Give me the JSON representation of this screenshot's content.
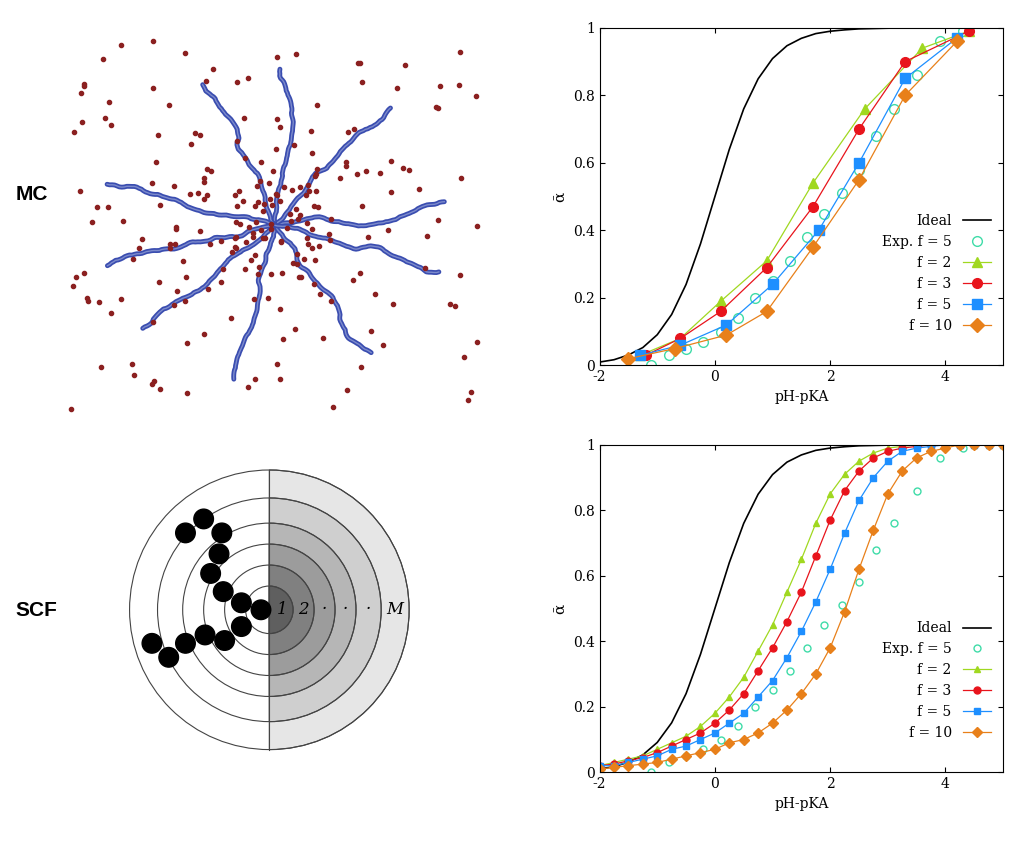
{
  "panel_labels": [
    "MC",
    "SCF"
  ],
  "diagram": {
    "layer_labels": [
      "1",
      "2",
      "·",
      "·",
      "·",
      "M"
    ]
  },
  "chart_data": [
    {
      "type": "scatter",
      "x_label": "pH-pKA",
      "y_label": "ᾱ",
      "xlim": [
        -2,
        5
      ],
      "ylim": [
        0,
        1
      ],
      "xticks": [
        -2,
        0,
        2,
        4
      ],
      "yticks": [
        0,
        0.2,
        0.4,
        0.6,
        0.8,
        1
      ],
      "legend": "lower right",
      "series": [
        {
          "name": "Ideal",
          "type": "line",
          "color": "#000000",
          "marker": "none",
          "line_style": "solid",
          "x": [
            -2,
            -1.75,
            -1.5,
            -1.25,
            -1,
            -0.75,
            -0.5,
            -0.25,
            0,
            0.25,
            0.5,
            0.75,
            1,
            1.25,
            1.5,
            1.75,
            2,
            2.25,
            2.5,
            2.75,
            3,
            3.25,
            3.5,
            3.75,
            4,
            4.25,
            4.5,
            4.75,
            5
          ],
          "values": [
            0.01,
            0.017,
            0.031,
            0.053,
            0.091,
            0.151,
            0.24,
            0.36,
            0.5,
            0.64,
            0.76,
            0.849,
            0.909,
            0.947,
            0.969,
            0.983,
            0.99,
            0.994,
            0.997,
            0.998,
            0.999,
            1,
            1,
            1,
            1,
            1,
            1,
            1,
            1
          ]
        },
        {
          "name": "Exp. f = 5",
          "type": "scatter",
          "color": "#3fdca8",
          "marker": "circle_open",
          "line_style": "none",
          "x": [
            -1.1,
            -0.8,
            -0.5,
            -0.2,
            0.1,
            0.4,
            0.7,
            1.0,
            1.3,
            1.6,
            1.9,
            2.2,
            2.5,
            2.8,
            3.1,
            3.5,
            3.9,
            4.3
          ],
          "values": [
            0.0,
            0.03,
            0.05,
            0.07,
            0.1,
            0.14,
            0.2,
            0.25,
            0.31,
            0.38,
            0.45,
            0.51,
            0.58,
            0.68,
            0.76,
            0.86,
            0.96,
            0.99
          ]
        },
        {
          "name": "f = 2",
          "type": "scatter",
          "color": "#a0d820",
          "marker": "triangle",
          "line_style": "solid",
          "x": [
            -1.3,
            -0.6,
            0.1,
            0.9,
            1.7,
            2.6,
            3.6,
            4.4
          ],
          "values": [
            0.03,
            0.08,
            0.19,
            0.31,
            0.54,
            0.76,
            0.94,
            0.99
          ]
        },
        {
          "name": "f = 3",
          "type": "scatter",
          "color": "#e8141c",
          "marker": "circle",
          "line_style": "solid",
          "x": [
            -1.2,
            -0.6,
            0.1,
            0.9,
            1.7,
            2.5,
            3.3,
            4.4
          ],
          "values": [
            0.03,
            0.08,
            0.16,
            0.29,
            0.47,
            0.7,
            0.9,
            0.99
          ]
        },
        {
          "name": "f = 5",
          "type": "scatter",
          "color": "#1e8fff",
          "marker": "square",
          "line_style": "solid",
          "x": [
            -1.3,
            -0.6,
            0.2,
            1.0,
            1.8,
            2.5,
            3.3,
            4.2
          ],
          "values": [
            0.03,
            0.06,
            0.12,
            0.24,
            0.4,
            0.6,
            0.85,
            0.97
          ]
        },
        {
          "name": "f = 10",
          "type": "scatter",
          "color": "#e8801a",
          "marker": "diamond",
          "line_style": "solid",
          "x": [
            -1.5,
            -0.7,
            0.2,
            0.9,
            1.7,
            2.5,
            3.3,
            4.2
          ],
          "values": [
            0.02,
            0.05,
            0.09,
            0.16,
            0.35,
            0.55,
            0.8,
            0.96
          ]
        }
      ]
    },
    {
      "type": "scatter",
      "x_label": "pH-pKA",
      "y_label": "ᾱ",
      "xlim": [
        -2,
        5
      ],
      "ylim": [
        0,
        1
      ],
      "xticks": [
        -2,
        0,
        2,
        4
      ],
      "yticks": [
        0,
        0.2,
        0.4,
        0.6,
        0.8,
        1
      ],
      "legend": "lower right",
      "series": [
        {
          "name": "Ideal",
          "type": "line",
          "color": "#000000",
          "marker": "none",
          "line_style": "solid",
          "x": [
            -2,
            -1.75,
            -1.5,
            -1.25,
            -1,
            -0.75,
            -0.5,
            -0.25,
            0,
            0.25,
            0.5,
            0.75,
            1,
            1.25,
            1.5,
            1.75,
            2,
            2.25,
            2.5,
            2.75,
            3,
            3.25,
            3.5,
            3.75,
            4,
            4.25,
            4.5,
            4.75,
            5
          ],
          "values": [
            0.01,
            0.017,
            0.031,
            0.053,
            0.091,
            0.151,
            0.24,
            0.36,
            0.5,
            0.64,
            0.76,
            0.849,
            0.909,
            0.947,
            0.969,
            0.983,
            0.99,
            0.994,
            0.997,
            0.998,
            0.999,
            1,
            1,
            1,
            1,
            1,
            1,
            1,
            1
          ]
        },
        {
          "name": "Exp. f = 5",
          "type": "scatter",
          "color": "#3fdca8",
          "marker": "circle_open",
          "line_style": "none",
          "x": [
            -1.1,
            -0.8,
            -0.5,
            -0.2,
            0.1,
            0.4,
            0.7,
            1.0,
            1.3,
            1.6,
            1.9,
            2.2,
            2.5,
            2.8,
            3.1,
            3.5,
            3.9,
            4.3
          ],
          "values": [
            0.0,
            0.03,
            0.05,
            0.07,
            0.1,
            0.14,
            0.2,
            0.25,
            0.31,
            0.38,
            0.45,
            0.51,
            0.58,
            0.68,
            0.76,
            0.86,
            0.96,
            0.99
          ]
        },
        {
          "name": "f = 2",
          "type": "scatter",
          "color": "#a0d820",
          "marker": "triangle",
          "line_style": "solid",
          "x": [
            -2,
            -1.75,
            -1.5,
            -1.25,
            -1,
            -0.75,
            -0.5,
            -0.25,
            0,
            0.25,
            0.5,
            0.75,
            1,
            1.25,
            1.5,
            1.75,
            2,
            2.25,
            2.5,
            2.75,
            3,
            3.25,
            3.5,
            3.75,
            4,
            4.25,
            4.5,
            4.75,
            5
          ],
          "values": [
            0.02,
            0.03,
            0.04,
            0.05,
            0.07,
            0.09,
            0.11,
            0.14,
            0.18,
            0.23,
            0.29,
            0.37,
            0.45,
            0.55,
            0.65,
            0.76,
            0.85,
            0.91,
            0.95,
            0.975,
            0.99,
            0.995,
            1,
            1,
            1,
            1,
            1,
            1,
            1
          ]
        },
        {
          "name": "f = 3",
          "type": "scatter",
          "color": "#e8141c",
          "marker": "circle",
          "line_style": "solid",
          "x": [
            -2,
            -1.75,
            -1.5,
            -1.25,
            -1,
            -0.75,
            -0.5,
            -0.25,
            0,
            0.25,
            0.5,
            0.75,
            1,
            1.25,
            1.5,
            1.75,
            2,
            2.25,
            2.5,
            2.75,
            3,
            3.25,
            3.5,
            3.75,
            4,
            4.25,
            4.5,
            4.75,
            5
          ],
          "values": [
            0.02,
            0.025,
            0.035,
            0.045,
            0.06,
            0.08,
            0.1,
            0.12,
            0.15,
            0.19,
            0.24,
            0.31,
            0.38,
            0.46,
            0.55,
            0.66,
            0.77,
            0.86,
            0.92,
            0.96,
            0.98,
            0.99,
            0.995,
            1,
            1,
            1,
            1,
            1,
            1
          ]
        },
        {
          "name": "f = 5",
          "type": "scatter",
          "color": "#1e8fff",
          "marker": "square",
          "line_style": "solid",
          "x": [
            -2,
            -1.75,
            -1.5,
            -1.25,
            -1,
            -0.75,
            -0.5,
            -0.25,
            0,
            0.25,
            0.5,
            0.75,
            1,
            1.25,
            1.5,
            1.75,
            2,
            2.25,
            2.5,
            2.75,
            3,
            3.25,
            3.5,
            3.75,
            4,
            4.25,
            4.5,
            4.75,
            5
          ],
          "values": [
            0.02,
            0.02,
            0.03,
            0.04,
            0.05,
            0.07,
            0.08,
            0.1,
            0.12,
            0.15,
            0.18,
            0.23,
            0.28,
            0.35,
            0.43,
            0.52,
            0.62,
            0.73,
            0.83,
            0.9,
            0.95,
            0.98,
            0.99,
            0.995,
            1,
            1,
            1,
            1,
            1
          ]
        },
        {
          "name": "f = 10",
          "type": "scatter",
          "color": "#e8801a",
          "marker": "diamond",
          "line_style": "solid",
          "x": [
            -2,
            -1.75,
            -1.5,
            -1.25,
            -1,
            -0.75,
            -0.5,
            -0.25,
            0,
            0.25,
            0.5,
            0.75,
            1,
            1.25,
            1.5,
            1.75,
            2,
            2.25,
            2.5,
            2.75,
            3,
            3.25,
            3.5,
            3.75,
            4,
            4.25,
            4.5,
            4.75,
            5
          ],
          "values": [
            0.01,
            0.015,
            0.02,
            0.025,
            0.03,
            0.04,
            0.05,
            0.06,
            0.07,
            0.09,
            0.1,
            0.12,
            0.15,
            0.19,
            0.24,
            0.3,
            0.38,
            0.49,
            0.62,
            0.74,
            0.85,
            0.92,
            0.96,
            0.98,
            0.99,
            1,
            1,
            1,
            1
          ]
        }
      ]
    }
  ]
}
